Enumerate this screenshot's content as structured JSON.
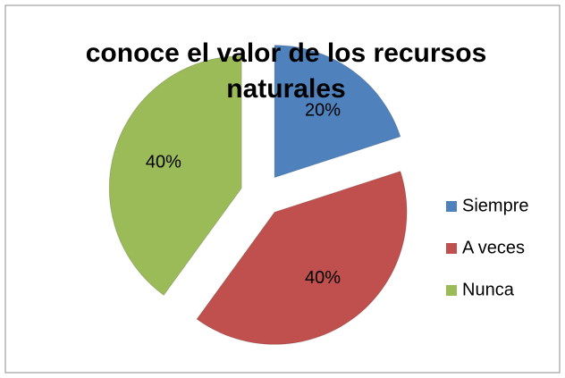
{
  "chart_data": {
    "type": "pie",
    "title": "conoce el valor de los recursos naturales",
    "categories": [
      "Siempre",
      "A veces",
      "Nunca"
    ],
    "values": [
      20,
      40,
      40
    ],
    "value_labels": [
      "20%",
      "40%",
      "40%"
    ],
    "colors": [
      "#4f81bd",
      "#c0504d",
      "#9bbb59"
    ],
    "legend": "right"
  }
}
